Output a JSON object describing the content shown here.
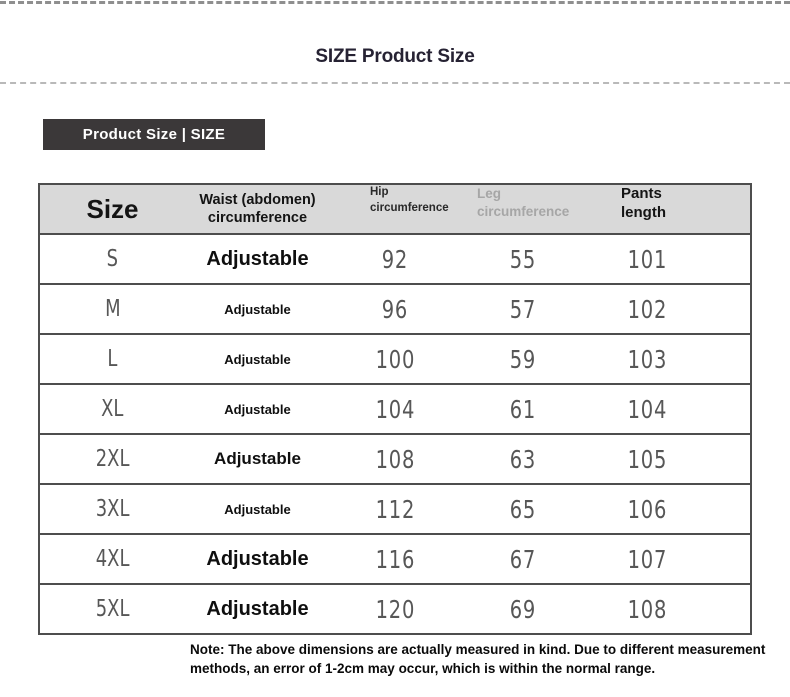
{
  "page": {
    "title": "SIZE Product Size"
  },
  "banner": {
    "label": "Product Size | SIZE"
  },
  "table": {
    "columns": [
      {
        "id": "size",
        "lines": [
          "Size",
          ""
        ]
      },
      {
        "id": "waist",
        "lines": [
          "Waist (abdomen)",
          "circumference"
        ]
      },
      {
        "id": "hip",
        "lines": [
          "Hip",
          "circumference"
        ]
      },
      {
        "id": "leg",
        "lines": [
          "Leg",
          "circumference"
        ]
      },
      {
        "id": "pants",
        "lines": [
          "Pants",
          "length"
        ]
      }
    ],
    "rows": [
      {
        "size": "S",
        "waist": "Adjustable",
        "hip": "92",
        "leg": "55",
        "pants": "101",
        "emphasis": "large"
      },
      {
        "size": "M",
        "waist": "Adjustable",
        "hip": "96",
        "leg": "57",
        "pants": "102",
        "emphasis": "small"
      },
      {
        "size": "L",
        "waist": "Adjustable",
        "hip": "100",
        "leg": "59",
        "pants": "103",
        "emphasis": "small"
      },
      {
        "size": "XL",
        "waist": "Adjustable",
        "hip": "104",
        "leg": "61",
        "pants": "104",
        "emphasis": "small"
      },
      {
        "size": "2XL",
        "waist": "Adjustable",
        "hip": "108",
        "leg": "63",
        "pants": "105",
        "emphasis": "medium"
      },
      {
        "size": "3XL",
        "waist": "Adjustable",
        "hip": "112",
        "leg": "65",
        "pants": "106",
        "emphasis": "small"
      },
      {
        "size": "4XL",
        "waist": "Adjustable",
        "hip": "116",
        "leg": "67",
        "pants": "107",
        "emphasis": "large"
      },
      {
        "size": "5XL",
        "waist": "Adjustable",
        "hip": "120",
        "leg": "69",
        "pants": "108",
        "emphasis": "large"
      }
    ]
  },
  "note": {
    "line1": "Note: The above dimensions are actually measured in kind. Due to different measurement",
    "line2": "methods, an error of 1-2cm may occur, which is within the normal range."
  },
  "colors": {
    "banner_bg": "#3b3839",
    "header_bg": "#d9d9d9",
    "table_border": "#4d4d4d",
    "muted_text": "#575757",
    "leg_header_text": "#a6a6a6",
    "title_text": "#262233"
  }
}
